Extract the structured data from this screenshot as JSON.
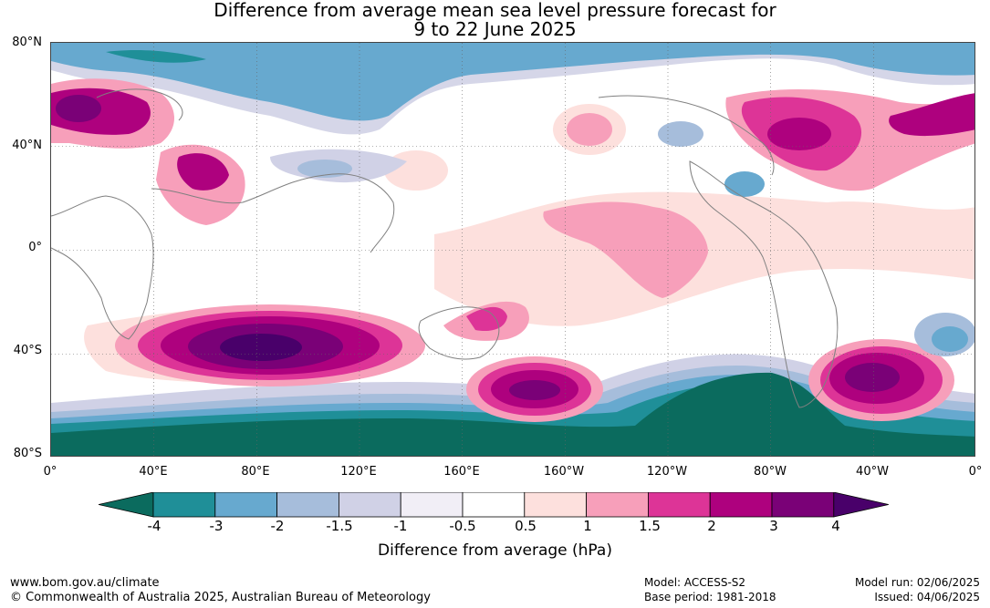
{
  "title_line1": "Difference from average mean sea level pressure forecast for",
  "title_line2": "9 to 22 June 2025",
  "lat_labels": [
    "80°N",
    "40°N",
    "0°",
    "40°S",
    "80°S"
  ],
  "lon_labels": [
    "0°",
    "40°E",
    "80°E",
    "120°E",
    "160°E",
    "160°W",
    "120°W",
    "80°W",
    "40°W",
    "0°"
  ],
  "colorbar": {
    "ticks": [
      "-4",
      "-3",
      "-2",
      "-1.5",
      "-1",
      "-0.5",
      "0.5",
      "1",
      "1.5",
      "2",
      "3",
      "4"
    ],
    "colors": [
      "#0b6b5e",
      "#1f8f98",
      "#67a9cf",
      "#a6bddb",
      "#d0d1e6",
      "#f1eef6",
      "#ffffff",
      "#fde0dd",
      "#f79fba",
      "#dd3497",
      "#ae017e",
      "#7a0177",
      "#49006a"
    ],
    "title": "Difference from average (hPa)"
  },
  "footer": {
    "website": "www.bom.gov.au/climate",
    "copyright": "© Commonwealth of Australia 2025, Australian Bureau of Meteorology",
    "model": "Model: ACCESS-S2",
    "base_period": "Base period: 1981-2018",
    "model_run": "Model run: 02/06/2025",
    "issued": "Issued: 04/06/2025"
  }
}
